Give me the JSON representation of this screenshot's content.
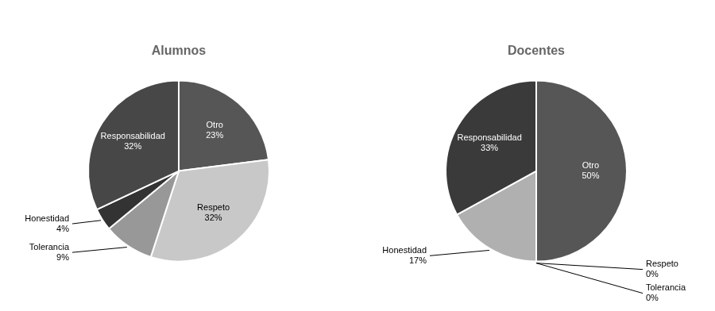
{
  "chart_data": [
    {
      "type": "pie",
      "title": "Alumnos",
      "categories": [
        "Otro",
        "Respeto",
        "Tolerancia",
        "Honestidad",
        "Responsabilidad"
      ],
      "values": [
        23,
        32,
        9,
        4,
        32
      ],
      "value_labels": [
        "23%",
        "32%",
        "9%",
        "4%",
        "32%"
      ],
      "colors": [
        "#565656",
        "#c8c8c8",
        "#989898",
        "#333333",
        "#474747"
      ],
      "data_labels": true
    },
    {
      "type": "pie",
      "title": "Docentes",
      "categories": [
        "Otro",
        "Respeto",
        "Tolerancia",
        "Honestidad",
        "Responsabilidad"
      ],
      "values": [
        50,
        0,
        0,
        17,
        33
      ],
      "value_labels": [
        "50%",
        "0%",
        "0%",
        "17%",
        "33%"
      ],
      "colors": [
        "#565656",
        "#888888",
        "#888888",
        "#b0b0b0",
        "#3a3a3a"
      ],
      "data_labels": true
    }
  ]
}
